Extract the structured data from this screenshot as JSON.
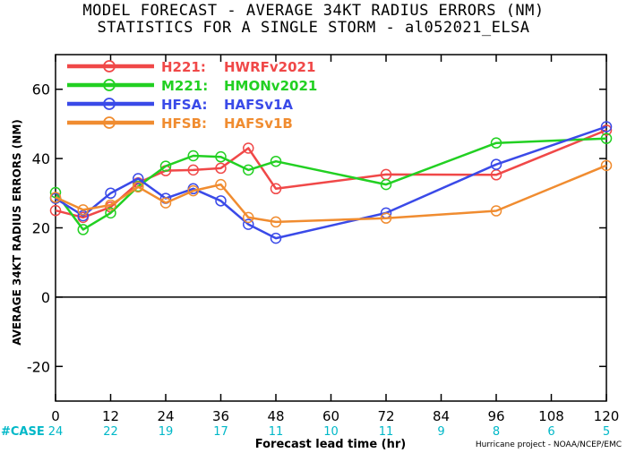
{
  "title_line1": "MODEL FORECAST - AVERAGE 34KT RADIUS ERRORS (NM)",
  "title_line2": "STATISTICS FOR A SINGLE STORM - al052021_ELSA",
  "credit": "Hurricane project - NOAA/NCEP/EMC",
  "case_label": "#CASE",
  "colors": {
    "case_text": "#00b8c8",
    "axis": "#000000"
  },
  "chart_data": {
    "type": "line",
    "title": "MODEL FORECAST - AVERAGE 34KT RADIUS ERRORS (NM)",
    "subtitle": "STATISTICS FOR A SINGLE STORM - al052021_ELSA",
    "xlabel": "Forecast lead time (hr)",
    "ylabel": "AVERAGE 34KT RADIUS ERRORS (NM)",
    "xlim": [
      0,
      120
    ],
    "ylim": [
      -30,
      70
    ],
    "x_ticks": [
      0,
      12,
      24,
      36,
      48,
      60,
      72,
      84,
      96,
      108,
      120
    ],
    "y_ticks": [
      -20,
      0,
      20,
      40,
      60
    ],
    "zero_line": true,
    "legend_position": "top-left",
    "case_counts": [
      {
        "x": 0,
        "n": "24"
      },
      {
        "x": 12,
        "n": "22"
      },
      {
        "x": 24,
        "n": "19"
      },
      {
        "x": 36,
        "n": "17"
      },
      {
        "x": 48,
        "n": "11"
      },
      {
        "x": 60,
        "n": "10"
      },
      {
        "x": 72,
        "n": "11"
      },
      {
        "x": 84,
        "n": "9"
      },
      {
        "x": 96,
        "n": "8"
      },
      {
        "x": 108,
        "n": "6"
      },
      {
        "x": 120,
        "n": "5"
      }
    ],
    "series": [
      {
        "id": "h221",
        "code": "H221:",
        "name": "HWRFv2021",
        "color": "#f04848",
        "points": [
          [
            0,
            25
          ],
          [
            6,
            23
          ],
          [
            12,
            26
          ],
          [
            18,
            33
          ],
          [
            24,
            36.5
          ],
          [
            30,
            36.7
          ],
          [
            36,
            37.2
          ],
          [
            42,
            43
          ],
          [
            48,
            31.3
          ],
          [
            72,
            35.4
          ],
          [
            96,
            35.3
          ],
          [
            120,
            48.2
          ]
        ]
      },
      {
        "id": "m221",
        "code": "M221:",
        "name": "HMONv2021",
        "color": "#22d022",
        "points": [
          [
            0,
            30.2
          ],
          [
            6,
            19.5
          ],
          [
            12,
            24.3
          ],
          [
            18,
            32
          ],
          [
            24,
            37.8
          ],
          [
            30,
            40.8
          ],
          [
            36,
            40.5
          ],
          [
            42,
            36.7
          ],
          [
            48,
            39.2
          ],
          [
            72,
            32.5
          ],
          [
            96,
            44.5
          ],
          [
            120,
            45.8
          ]
        ]
      },
      {
        "id": "hfsa",
        "code": "HFSA:",
        "name": "HAFSv1A",
        "color": "#3a4ae8",
        "points": [
          [
            0,
            28.5
          ],
          [
            6,
            23.5
          ],
          [
            12,
            30
          ],
          [
            18,
            34.2
          ],
          [
            24,
            28.5
          ],
          [
            30,
            31.3
          ],
          [
            36,
            27.8
          ],
          [
            42,
            21
          ],
          [
            48,
            17
          ],
          [
            72,
            24.3
          ],
          [
            96,
            38.3
          ],
          [
            120,
            49.2
          ]
        ]
      },
      {
        "id": "hfsb",
        "code": "HFSB:",
        "name": "HAFSv1B",
        "color": "#f08c30",
        "points": [
          [
            0,
            28.8
          ],
          [
            6,
            25.2
          ],
          [
            12,
            26.6
          ],
          [
            18,
            31.8
          ],
          [
            24,
            27.2
          ],
          [
            30,
            30.7
          ],
          [
            36,
            32.5
          ],
          [
            42,
            23
          ],
          [
            48,
            21.7
          ],
          [
            72,
            22.8
          ],
          [
            96,
            24.9
          ],
          [
            120,
            38
          ]
        ]
      }
    ]
  }
}
